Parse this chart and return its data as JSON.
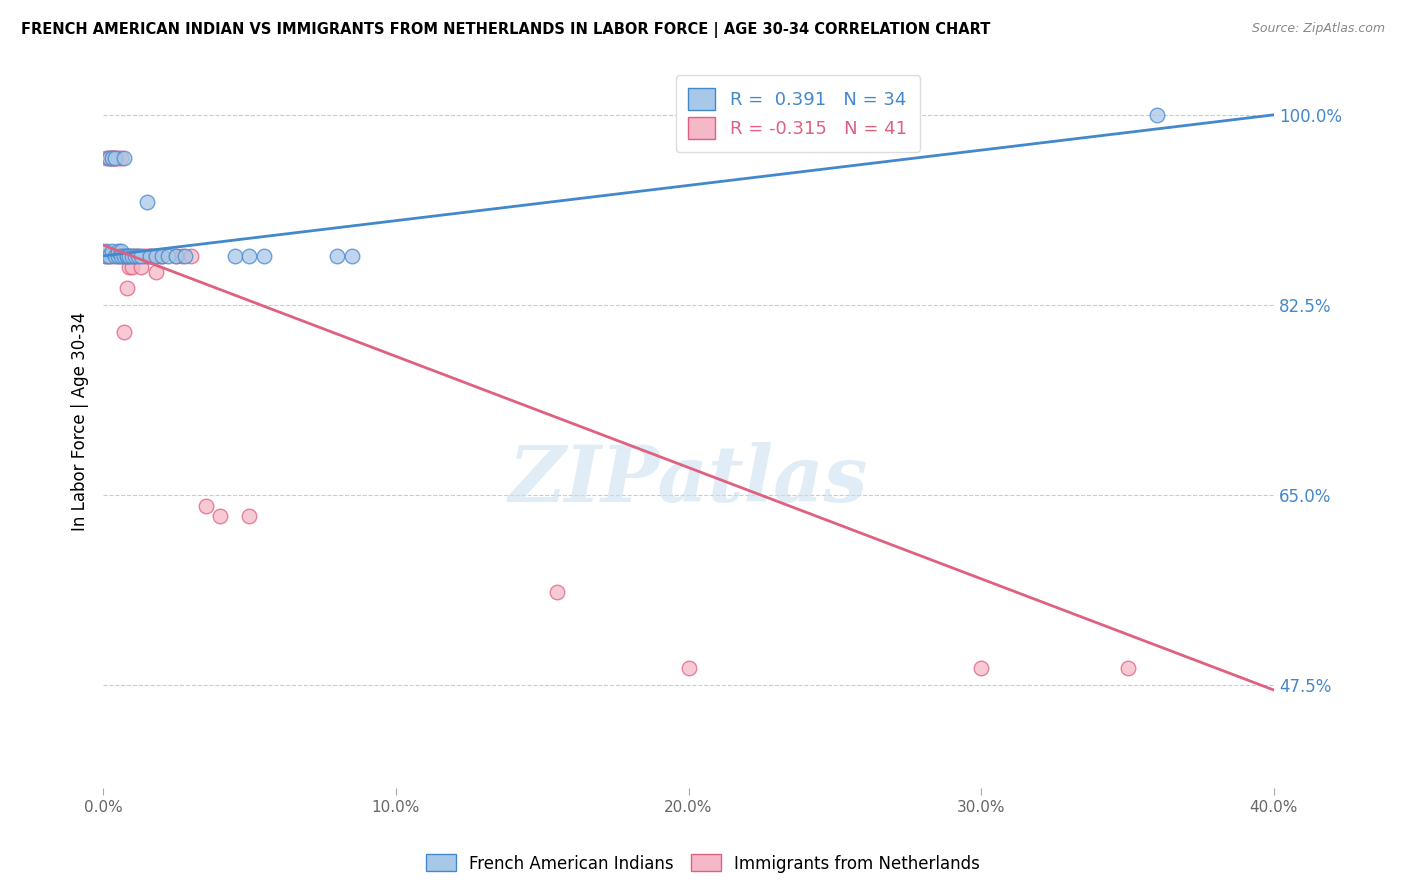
{
  "title": "FRENCH AMERICAN INDIAN VS IMMIGRANTS FROM NETHERLANDS IN LABOR FORCE | AGE 30-34 CORRELATION CHART",
  "source": "Source: ZipAtlas.com",
  "ylabel": "In Labor Force | Age 30-34",
  "ytick_labels": [
    "100.0%",
    "82.5%",
    "65.0%",
    "47.5%"
  ],
  "ytick_values": [
    1.0,
    0.825,
    0.65,
    0.475
  ],
  "xlim": [
    0.0,
    0.4
  ],
  "ylim": [
    0.38,
    1.055
  ],
  "blue_R": "0.391",
  "blue_N": "34",
  "pink_R": "-0.315",
  "pink_N": "41",
  "blue_color": "#a8c8e8",
  "pink_color": "#f4b8c8",
  "blue_line_color": "#4488cc",
  "pink_line_color": "#e06080",
  "watermark": "ZIPatlas",
  "blue_scatter_x": [
    0.001,
    0.001,
    0.002,
    0.002,
    0.003,
    0.003,
    0.004,
    0.004,
    0.005,
    0.005,
    0.006,
    0.006,
    0.007,
    0.007,
    0.008,
    0.008,
    0.009,
    0.01,
    0.011,
    0.012,
    0.013,
    0.015,
    0.016,
    0.018,
    0.02,
    0.022,
    0.025,
    0.028,
    0.045,
    0.05,
    0.055,
    0.08,
    0.085,
    0.36
  ],
  "blue_scatter_y": [
    0.87,
    0.875,
    0.96,
    0.87,
    0.96,
    0.875,
    0.96,
    0.87,
    0.87,
    0.875,
    0.875,
    0.87,
    0.87,
    0.96,
    0.87,
    0.87,
    0.87,
    0.87,
    0.87,
    0.87,
    0.87,
    0.92,
    0.87,
    0.87,
    0.87,
    0.87,
    0.87,
    0.87,
    0.87,
    0.87,
    0.87,
    0.87,
    0.87,
    1.0
  ],
  "pink_scatter_x": [
    0.001,
    0.001,
    0.002,
    0.002,
    0.003,
    0.003,
    0.003,
    0.004,
    0.004,
    0.005,
    0.005,
    0.006,
    0.006,
    0.007,
    0.007,
    0.008,
    0.008,
    0.009,
    0.009,
    0.01,
    0.01,
    0.011,
    0.012,
    0.013,
    0.014,
    0.015,
    0.016,
    0.017,
    0.018,
    0.019,
    0.02,
    0.025,
    0.027,
    0.03,
    0.035,
    0.04,
    0.05,
    0.155,
    0.2,
    0.3,
    0.35
  ],
  "pink_scatter_y": [
    0.96,
    0.87,
    0.96,
    0.87,
    0.96,
    0.96,
    0.87,
    0.96,
    0.96,
    0.96,
    0.87,
    0.96,
    0.87,
    0.87,
    0.8,
    0.87,
    0.84,
    0.86,
    0.87,
    0.86,
    0.87,
    0.87,
    0.87,
    0.86,
    0.87,
    0.87,
    0.87,
    0.87,
    0.855,
    0.87,
    0.87,
    0.87,
    0.87,
    0.87,
    0.64,
    0.63,
    0.63,
    0.56,
    0.49,
    0.49,
    0.49
  ],
  "blue_line_x0": 0.0,
  "blue_line_y0": 0.87,
  "blue_line_x1": 0.4,
  "blue_line_y1": 1.0,
  "pink_line_x0": 0.0,
  "pink_line_y0": 0.88,
  "pink_line_x1": 0.4,
  "pink_line_y1": 0.47
}
